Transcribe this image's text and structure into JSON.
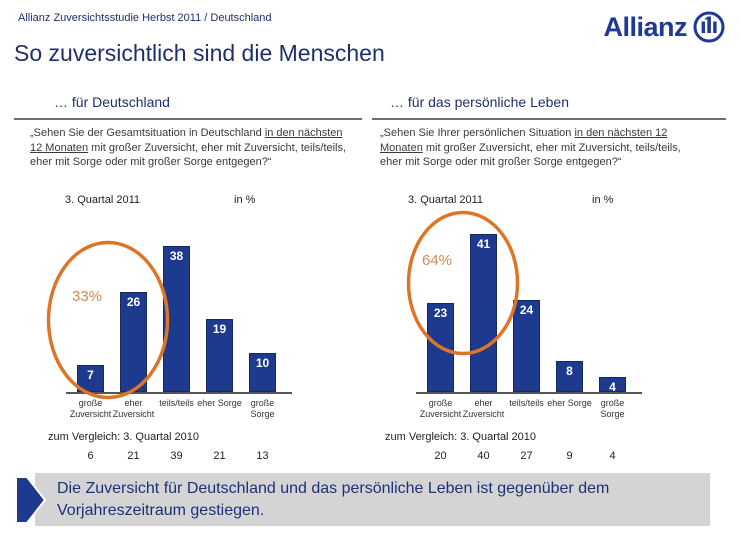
{
  "slide": {
    "subtitle": "Allianz Zuversichtsstudie Herbst 2011 / Deutschland",
    "title": "So zuversichtlich sind die Menschen",
    "logo_text": "Allianz"
  },
  "colors": {
    "navy_text": "#1f2f6e",
    "bar_blue": "#1e3a8f",
    "accent_orange": "#dd7527",
    "highlight_text_orange": "#d08a50",
    "callout_bg": "#d4d4d4",
    "callout_text": "#1d3078"
  },
  "panels": [
    {
      "heading": "… für Deutschland",
      "question": {
        "lead": "„Sehen Sie der Gesamtsituation in Deutschland ",
        "underlined": "in den nächsten 12 Monaten",
        "rest": " mit großer Zuversicht, eher mit Zuversicht, teils/teils, eher mit Sorge oder mit großer Sorge entgegen?“"
      }
    },
    {
      "heading": "… für das persönliche Leben",
      "question": {
        "lead": "„Sehen Sie Ihrer persönlichen Situation ",
        "underlined": "in den nächsten 12 Monaten",
        "rest": " mit großer Zuversicht, eher mit Zuversicht, teils/teils, eher mit Sorge oder mit großer Sorge entgegen?“"
      }
    }
  ],
  "chart_data": [
    {
      "type": "bar",
      "title": "3. Quartal 2011",
      "unit": "in %",
      "categories": [
        "große Zuversicht",
        "eher Zuversicht",
        "teils/teils",
        "eher Sorge",
        "große Sorge"
      ],
      "categories_wrapped": [
        [
          "große",
          "Zuversicht"
        ],
        [
          "eher",
          "Zuversicht"
        ],
        [
          "teils/teils"
        ],
        [
          "eher Sorge"
        ],
        [
          "große",
          "Sorge"
        ]
      ],
      "values": [
        7,
        26,
        38,
        19,
        10
      ],
      "ylim": [
        0,
        45
      ],
      "grid": false,
      "annotation": {
        "text": "33%",
        "covers": [
          "große Zuversicht",
          "eher Zuversicht"
        ]
      },
      "comparison": {
        "label": "zum Vergleich: 3. Quartal 2010",
        "values": [
          6,
          21,
          39,
          21,
          13
        ]
      }
    },
    {
      "type": "bar",
      "title": "3. Quartal 2011",
      "unit": "in %",
      "categories": [
        "große Zuversicht",
        "eher Zuversicht",
        "teils/teils",
        "eher Sorge",
        "große Sorge"
      ],
      "categories_wrapped": [
        [
          "große",
          "Zuversicht"
        ],
        [
          "eher",
          "Zuversicht"
        ],
        [
          "teils/teils"
        ],
        [
          "eher Sorge"
        ],
        [
          "große",
          "Sorge"
        ]
      ],
      "values": [
        23,
        41,
        24,
        8,
        4
      ],
      "ylim": [
        0,
        45
      ],
      "grid": false,
      "annotation": {
        "text": "64%",
        "covers": [
          "große Zuversicht",
          "eher Zuversicht"
        ]
      },
      "comparison": {
        "label": "zum Vergleich: 3. Quartal 2010",
        "values": [
          20,
          40,
          27,
          9,
          4
        ]
      }
    }
  ],
  "callout": {
    "text": "Die Zuversicht für Deutschland und das persönliche Leben ist gegenüber dem Vorjahreszeitraum gestiegen."
  }
}
